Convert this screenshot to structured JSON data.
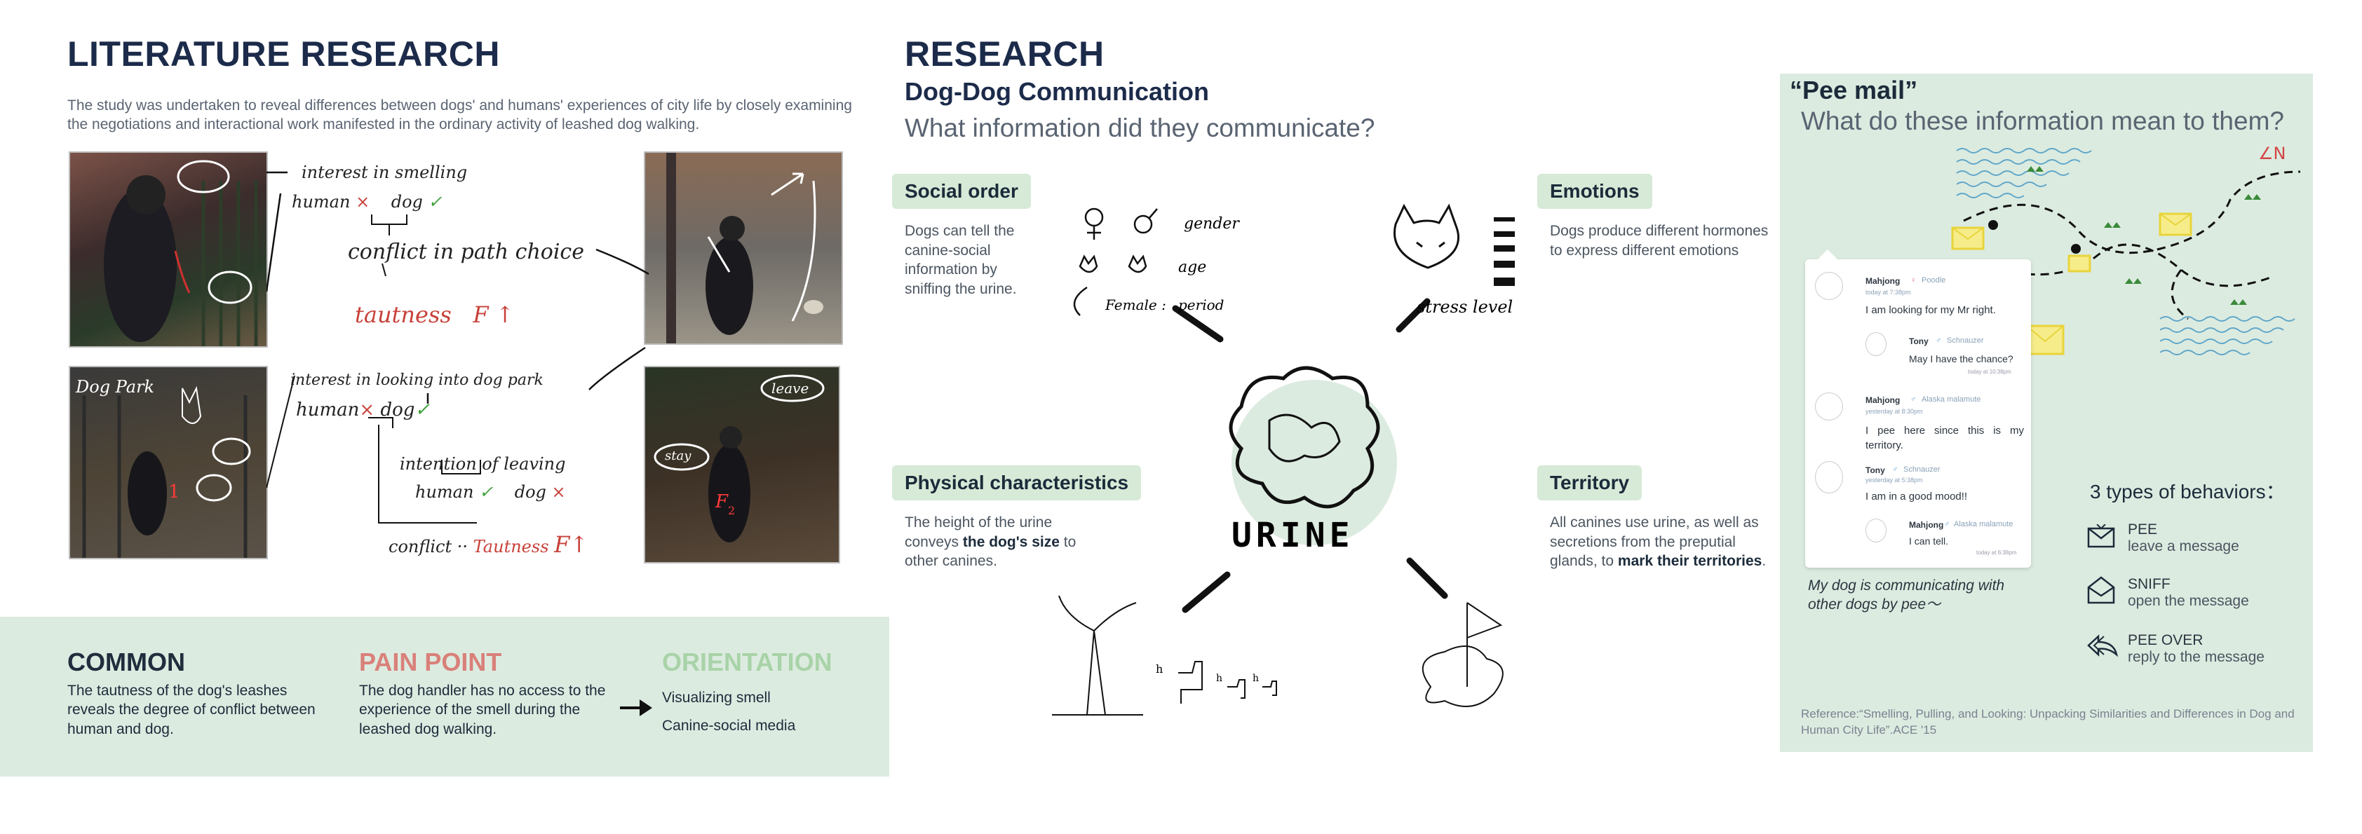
{
  "left": {
    "title": "LITERATURE RESEARCH",
    "intro": "The study was undertaken to reveal differences between dogs' and humans' experiences of city life by closely examining the negotiations and interactional work manifested in the ordinary activity of leashed dog walking.",
    "sketch1": {
      "interest": "interest in smelling",
      "human": "human",
      "dog": "dog",
      "cross": "×",
      "check": "✓",
      "conflict": "conflict in path choice",
      "tautness": "tautness",
      "f": "F"
    },
    "sketch2": {
      "interest": "interest in looking into dog park",
      "human": "human",
      "dog": "dog",
      "cross": "×",
      "check": "✓",
      "intention": "intention of leaving",
      "human2": "human",
      "dog2": "dog",
      "conflict": "conflict ··",
      "tautness": "Tautness",
      "f": "F"
    },
    "photo_labels": {
      "dog_park": "Dog Park",
      "leave": "leave",
      "stay": "stay",
      "num1": "1",
      "num2": "2"
    }
  },
  "bottom": {
    "common": {
      "title": "COMMON",
      "text": "The tautness of the dog's leashes reveals the degree of conflict between human and dog.",
      "color": "#111111"
    },
    "pain": {
      "title": "PAIN POINT",
      "text": "The dog handler has no access to the experience of the smell during the leashed dog walking.",
      "color": "#d9807a"
    },
    "orientation": {
      "title": "ORIENTATION",
      "items": [
        "Visualizing smell",
        "Canine-social media"
      ],
      "color": "#a8d3a8"
    }
  },
  "research": {
    "title": "RESEARCH",
    "subtitle": "Dog-Dog Communication",
    "question": "What information did they communicate?",
    "social": {
      "label": "Social order",
      "text": "Dogs can tell the canine-social information by sniffing the urine."
    },
    "emotions": {
      "label": "Emotions",
      "text": "Dogs produce different hormones to express different emotions"
    },
    "physical": {
      "label": "Physical characteristics",
      "text_pre": "The height of the urine conveys ",
      "text_bold": "the dog's size",
      "text_post": " to other canines."
    },
    "territory": {
      "label": "Territory",
      "text_pre": "All canines use urine, as well as secretions from the preputial glands, to ",
      "text_bold": "mark their territories",
      "text_post": "."
    },
    "sketch": {
      "gender": "gender",
      "age": "age",
      "female": "Female :",
      "period": "period",
      "stress": "stress level",
      "urine": "URINE",
      "h1": "h",
      "h2": "h",
      "h3": "h"
    }
  },
  "peemail": {
    "title": "“Pee mail”",
    "question": "What do these information mean to them?",
    "chat": [
      {
        "name": "Mahjong",
        "gender": "♀",
        "breed": "Poodle",
        "when": "today at 7:38pm",
        "text": "I am looking for my Mr right."
      },
      {
        "name": "Tony",
        "gender": "♂",
        "breed": "Schnauzer",
        "when": "",
        "text": "May I have the chance?",
        "time": "today at 10:38pm"
      },
      {
        "name": "Mahjong",
        "gender": "♂",
        "breed": "Alaska malamute",
        "when": "yesterday at 8:30pm",
        "text": "I pee here since this is my territory."
      },
      {
        "name": "Tony",
        "gender": "♂",
        "breed": "Schnauzer",
        "when": "yesterday at 5:38pm",
        "text": "I am in a good mood!!"
      },
      {
        "name": "Mahjong",
        "gender": "♂",
        "breed": "Alaska malamute",
        "when": "",
        "text": "I can tell.",
        "time": "today at 6:38pm"
      }
    ],
    "caption": "My dog is communicating with other dogs by pee～",
    "behaviors_title": "3 types of behaviors：",
    "behaviors": [
      {
        "icon": "envelope-icon",
        "title": "PEE",
        "sub": "leave a message"
      },
      {
        "icon": "open-envelope-icon",
        "title": "SNIFF",
        "sub": "open the message"
      },
      {
        "icon": "reply-icon",
        "title": "PEE OVER",
        "sub": "reply to  the message"
      }
    ],
    "map_mark": "∠N",
    "reference": "Reference:“Smelling, Pulling, and Looking: Unpacking Similarities and Differences in Dog and Human City Life”.ACE '15"
  }
}
